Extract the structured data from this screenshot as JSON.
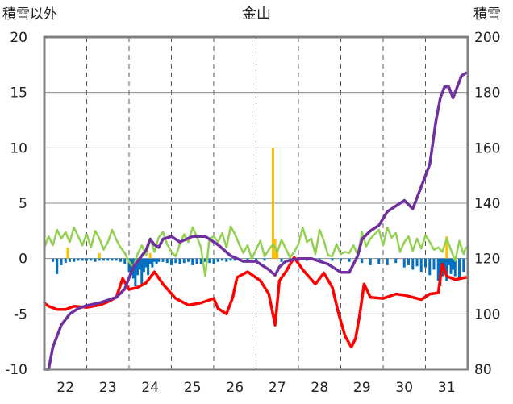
{
  "chart_data": {
    "type": "line",
    "title": "金山",
    "y_left_label": "積雪以外",
    "y_right_label": "積雪",
    "ylim_left": [
      -10,
      20
    ],
    "ylim_right": [
      80,
      200
    ],
    "y_left_ticks": [
      "20",
      "15",
      "10",
      "5",
      "0",
      "-5",
      "-10"
    ],
    "y_right_ticks": [
      "200",
      "180",
      "160",
      "140",
      "120",
      "100",
      "80"
    ],
    "xlim": [
      21.5,
      31.5
    ],
    "categories": [
      "22",
      "23",
      "24",
      "25",
      "26",
      "27",
      "28",
      "29",
      "30",
      "31"
    ],
    "grid": true,
    "colors": {
      "snow_depth": "#7030A0",
      "temperature": "#FF0000",
      "wind": "#92D050",
      "precip": "#FFC000",
      "snow_change": "#0070C0"
    },
    "series": [
      {
        "key": "snow_depth",
        "axis": "right",
        "x": [
          21.5,
          21.6,
          21.7,
          21.8,
          21.9,
          22.0,
          22.1,
          22.3,
          22.5,
          22.8,
          23.0,
          23.2,
          23.4,
          23.6,
          23.8,
          23.9,
          24.0,
          24.1,
          24.2,
          24.3,
          24.5,
          24.7,
          25.0,
          25.3,
          25.6,
          25.9,
          26.2,
          26.5,
          26.8,
          26.95,
          27.05,
          27.2,
          27.5,
          27.8,
          28.2,
          28.5,
          28.7,
          28.9,
          29.0,
          29.2,
          29.4,
          29.6,
          29.8,
          30.0,
          30.2,
          30.4,
          30.6,
          30.75,
          30.85,
          30.95,
          31.05,
          31.15,
          31.25,
          31.35,
          31.45
        ],
        "y": [
          80,
          80,
          88,
          92,
          96,
          98,
          100,
          102,
          103,
          104,
          105,
          106,
          109,
          117,
          121,
          123,
          127,
          125,
          124,
          127,
          128,
          126,
          128,
          128,
          125,
          121,
          119,
          119,
          116,
          114,
          117,
          119,
          120,
          120,
          118,
          115,
          115,
          121,
          127,
          130,
          132,
          137,
          139,
          141,
          138,
          146,
          154,
          170,
          178,
          182,
          182,
          178,
          182,
          186,
          187
        ]
      },
      {
        "key": "temperature",
        "axis": "left",
        "x": [
          21.5,
          21.6,
          21.8,
          22.0,
          22.2,
          22.5,
          22.8,
          23.0,
          23.2,
          23.35,
          23.5,
          23.7,
          23.9,
          24.1,
          24.3,
          24.6,
          24.9,
          25.2,
          25.5,
          25.6,
          25.8,
          25.95,
          26.05,
          26.3,
          26.6,
          26.8,
          26.95,
          27.05,
          27.2,
          27.4,
          27.6,
          27.9,
          28.1,
          28.3,
          28.45,
          28.6,
          28.75,
          28.85,
          28.95,
          29.05,
          29.2,
          29.5,
          29.8,
          30.0,
          30.2,
          30.4,
          30.6,
          30.8,
          30.9,
          31.0,
          31.2,
          31.45
        ],
        "y": [
          -4,
          -4.3,
          -4.6,
          -4.6,
          -4.3,
          -4.4,
          -4.2,
          -3.9,
          -3.5,
          -1.8,
          -2.8,
          -2.6,
          -2.2,
          -1.2,
          -2.3,
          -3.6,
          -4.2,
          -4.0,
          -3.6,
          -4.5,
          -5.0,
          -3.5,
          -1.7,
          -1.2,
          -2.0,
          -3.2,
          -6.0,
          -2.0,
          -1.2,
          0.1,
          -1.0,
          -2.3,
          -1.3,
          -2.6,
          -5.0,
          -7.0,
          -8.0,
          -7.2,
          -5.0,
          -2.3,
          -3.5,
          -3.6,
          -3.2,
          -3.3,
          -3.5,
          -3.7,
          -3.2,
          -3.1,
          -0.5,
          -1.6,
          -1.9,
          -1.7
        ]
      },
      {
        "key": "wind",
        "axis": "left",
        "x": [
          21.5,
          21.6,
          21.7,
          21.8,
          21.9,
          22.0,
          22.1,
          22.2,
          22.3,
          22.4,
          22.5,
          22.6,
          22.7,
          22.8,
          22.9,
          23.0,
          23.1,
          23.2,
          23.3,
          23.4,
          23.5,
          23.6,
          23.7,
          23.8,
          23.9,
          24.0,
          24.1,
          24.2,
          24.3,
          24.4,
          24.5,
          24.6,
          24.7,
          24.8,
          24.9,
          25.0,
          25.1,
          25.2,
          25.3,
          25.4,
          25.5,
          25.6,
          25.7,
          25.8,
          25.9,
          26.0,
          26.1,
          26.2,
          26.3,
          26.4,
          26.5,
          26.6,
          26.7,
          26.8,
          26.9,
          27.0,
          27.1,
          27.2,
          27.3,
          27.4,
          27.5,
          27.6,
          27.7,
          27.8,
          27.9,
          28.0,
          28.1,
          28.2,
          28.3,
          28.4,
          28.5,
          28.6,
          28.7,
          28.8,
          28.9,
          29.0,
          29.1,
          29.2,
          29.3,
          29.4,
          29.5,
          29.6,
          29.7,
          29.8,
          29.9,
          30.0,
          30.1,
          30.2,
          30.3,
          30.4,
          30.5,
          30.6,
          30.7,
          30.8,
          30.9,
          31.0,
          31.1,
          31.2,
          31.3,
          31.4,
          31.45
        ],
        "y": [
          1.0,
          2.0,
          1.2,
          2.6,
          1.8,
          2.4,
          1.5,
          2.8,
          2.0,
          1.2,
          2.2,
          1.0,
          2.5,
          1.8,
          0.8,
          1.5,
          2.6,
          1.7,
          1.0,
          0.5,
          -0.3,
          -0.8,
          0.4,
          1.2,
          0.3,
          1.8,
          0.6,
          1.9,
          2.4,
          1.3,
          0.6,
          0.2,
          1.3,
          2.2,
          1.5,
          2.8,
          2.0,
          1.0,
          -1.6,
          1.8,
          2.0,
          1.5,
          2.3,
          1.0,
          2.9,
          2.2,
          1.3,
          0.5,
          1.2,
          0.0,
          0.8,
          1.6,
          0.2,
          0.8,
          1.3,
          0.6,
          1.7,
          0.9,
          0.1,
          0.6,
          1.3,
          2.8,
          1.5,
          1.8,
          0.4,
          2.6,
          1.6,
          0.3,
          0.2,
          1.3,
          0.4,
          0.6,
          0.5,
          1.2,
          0.3,
          2.4,
          1.1,
          1.8,
          2.2,
          2.6,
          1.2,
          2.8,
          1.9,
          2.3,
          0.6,
          1.5,
          2.0,
          0.7,
          1.8,
          0.9,
          2.1,
          1.5,
          0.8,
          1.0,
          0.6,
          1.8,
          0.8,
          -0.2,
          1.6,
          0.4,
          1.0
        ]
      },
      {
        "key": "precip",
        "axis": "left",
        "style": "bars",
        "x": [
          22.05,
          22.8,
          24.0,
          26.9,
          26.95,
          27.0,
          31.0
        ],
        "y": [
          1.0,
          0.5,
          0.5,
          10.0,
          1.8,
          0.8,
          2.0
        ]
      },
      {
        "key": "snow_change",
        "axis": "left",
        "style": "bars",
        "x": [
          21.7,
          21.8,
          21.9,
          22.0,
          22.1,
          22.2,
          22.3,
          22.4,
          22.5,
          22.6,
          22.7,
          22.8,
          22.9,
          23.0,
          23.1,
          23.2,
          23.3,
          23.4,
          23.5,
          23.55,
          23.6,
          23.65,
          23.7,
          23.75,
          23.8,
          23.85,
          23.9,
          23.95,
          24.0,
          24.05,
          24.1,
          24.15,
          24.2,
          24.3,
          24.4,
          24.5,
          24.6,
          24.7,
          24.8,
          24.9,
          25.0,
          25.1,
          25.2,
          25.3,
          25.4,
          25.5,
          25.6,
          25.7,
          25.8,
          25.9,
          26.0,
          26.3,
          26.5,
          26.7,
          27.1,
          27.3,
          27.5,
          27.7,
          28.0,
          28.3,
          28.5,
          28.7,
          29.0,
          29.2,
          29.4,
          29.6,
          29.8,
          30.0,
          30.1,
          30.2,
          30.3,
          30.4,
          30.5,
          30.6,
          30.7,
          30.8,
          30.85,
          30.9,
          30.95,
          31.0,
          31.05,
          31.1,
          31.15,
          31.2,
          31.3,
          31.4
        ],
        "y": [
          -0.3,
          -1.4,
          -0.6,
          -0.4,
          -0.3,
          -0.3,
          -0.2,
          -0.2,
          -0.2,
          -0.2,
          -0.3,
          -0.2,
          -0.2,
          -0.2,
          -0.2,
          -0.2,
          -0.3,
          -0.5,
          -1.2,
          -1.5,
          -1.8,
          -2.5,
          -1.5,
          -1.0,
          -2.3,
          -1.2,
          -0.8,
          -1.5,
          -0.5,
          -0.8,
          -0.3,
          -0.5,
          -0.3,
          -0.3,
          -0.4,
          -0.6,
          -0.4,
          -0.5,
          -0.4,
          -0.3,
          -0.6,
          -0.5,
          -0.5,
          -0.3,
          -0.4,
          -0.5,
          -0.3,
          -0.2,
          -0.3,
          -0.2,
          -0.2,
          -0.2,
          -0.2,
          -0.2,
          -0.3,
          -0.2,
          -0.2,
          -0.2,
          -0.3,
          -0.2,
          -0.2,
          -0.3,
          -0.4,
          -0.6,
          -0.5,
          -0.6,
          -0.4,
          -0.8,
          -0.6,
          -1.0,
          -0.7,
          -1.2,
          -0.8,
          -1.5,
          -1.0,
          -2.0,
          -2.5,
          -1.6,
          -1.2,
          -2.0,
          -0.6,
          -1.4,
          -1.0,
          -1.6,
          -1.8,
          -1.2
        ]
      }
    ]
  }
}
